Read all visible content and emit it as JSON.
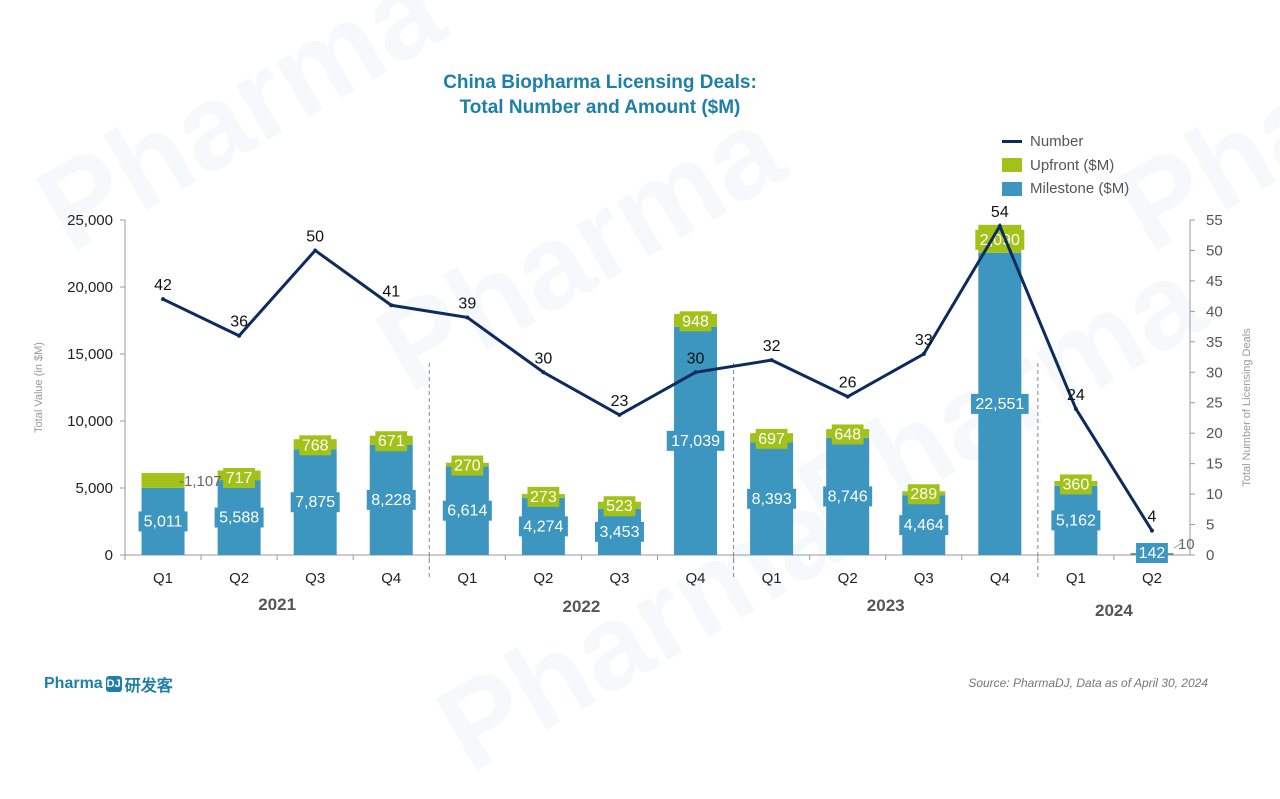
{
  "title_line1": "China Biopharma Licensing Deals:",
  "title_line2": "Total Number and Amount ($M)",
  "source": "Source: PharmaDJ, Data as of April 30, 2024",
  "logo": {
    "text": "Pharma",
    "box": "DJ",
    "cn": "研发客"
  },
  "watermark": "Pharma",
  "colors": {
    "milestone": "#3d96c0",
    "upfront": "#a2c21a",
    "number": "#0d2b5e",
    "title": "#1e7fa8"
  },
  "legend": [
    {
      "label": "Number",
      "kind": "line"
    },
    {
      "label": "Upfront ($M)",
      "kind": "upfront"
    },
    {
      "label": "Milestone ($M)",
      "kind": "milestone"
    }
  ],
  "chart_data": {
    "type": "bar",
    "stacked": true,
    "categories": [
      "Q1",
      "Q2",
      "Q3",
      "Q4",
      "Q1",
      "Q2",
      "Q3",
      "Q4",
      "Q1",
      "Q2",
      "Q3",
      "Q4",
      "Q1",
      "Q2"
    ],
    "years": [
      {
        "label": "2021",
        "span": [
          0,
          3
        ]
      },
      {
        "label": "2022",
        "span": [
          4,
          7
        ]
      },
      {
        "label": "2023",
        "span": [
          8,
          11
        ]
      },
      {
        "label": "2024",
        "span": [
          12,
          13
        ]
      }
    ],
    "series": [
      {
        "name": "Milestone ($M)",
        "axis": "left",
        "values": [
          5011,
          5588,
          7875,
          8228,
          6614,
          4274,
          3453,
          17039,
          8393,
          8746,
          4464,
          22551,
          5162,
          142
        ],
        "labels": [
          "5,011",
          "5,588",
          "7,875",
          "8,228",
          "6,614",
          "4,274",
          "3,453",
          "17,039",
          "8,393",
          "8,746",
          "4,464",
          "22,551",
          "5,162",
          "142"
        ]
      },
      {
        "name": "Upfront ($M)",
        "axis": "left",
        "values": [
          1107,
          717,
          768,
          671,
          270,
          273,
          523,
          948,
          697,
          648,
          289,
          2090,
          360,
          10
        ],
        "labels": [
          "1,107",
          "717",
          "768",
          "671",
          "270",
          "273",
          "523",
          "948",
          "697",
          "648",
          "289",
          "2,090",
          "360",
          "10"
        ]
      },
      {
        "name": "Number",
        "axis": "right",
        "type": "line",
        "values": [
          42,
          36,
          50,
          41,
          39,
          30,
          23,
          30,
          32,
          26,
          33,
          54,
          24,
          4
        ],
        "labels": [
          "42",
          "36",
          "50",
          "41",
          "39",
          "30",
          "23",
          "30",
          "32",
          "26",
          "33",
          "54",
          "24",
          "4"
        ]
      }
    ],
    "ylabel": "Total Value (in $M)",
    "y2label": "Total Number of Licensing Deals",
    "ylim": [
      0,
      25000
    ],
    "y2lim": [
      0,
      55
    ],
    "yticks": [
      "0",
      "5,000",
      "10,000",
      "15,000",
      "20,000",
      "25,000"
    ],
    "y2ticks": [
      "0",
      "5",
      "10",
      "15",
      "20",
      "25",
      "30",
      "35",
      "40",
      "45",
      "50",
      "55"
    ],
    "legend_position": "top-right",
    "grid": false
  }
}
